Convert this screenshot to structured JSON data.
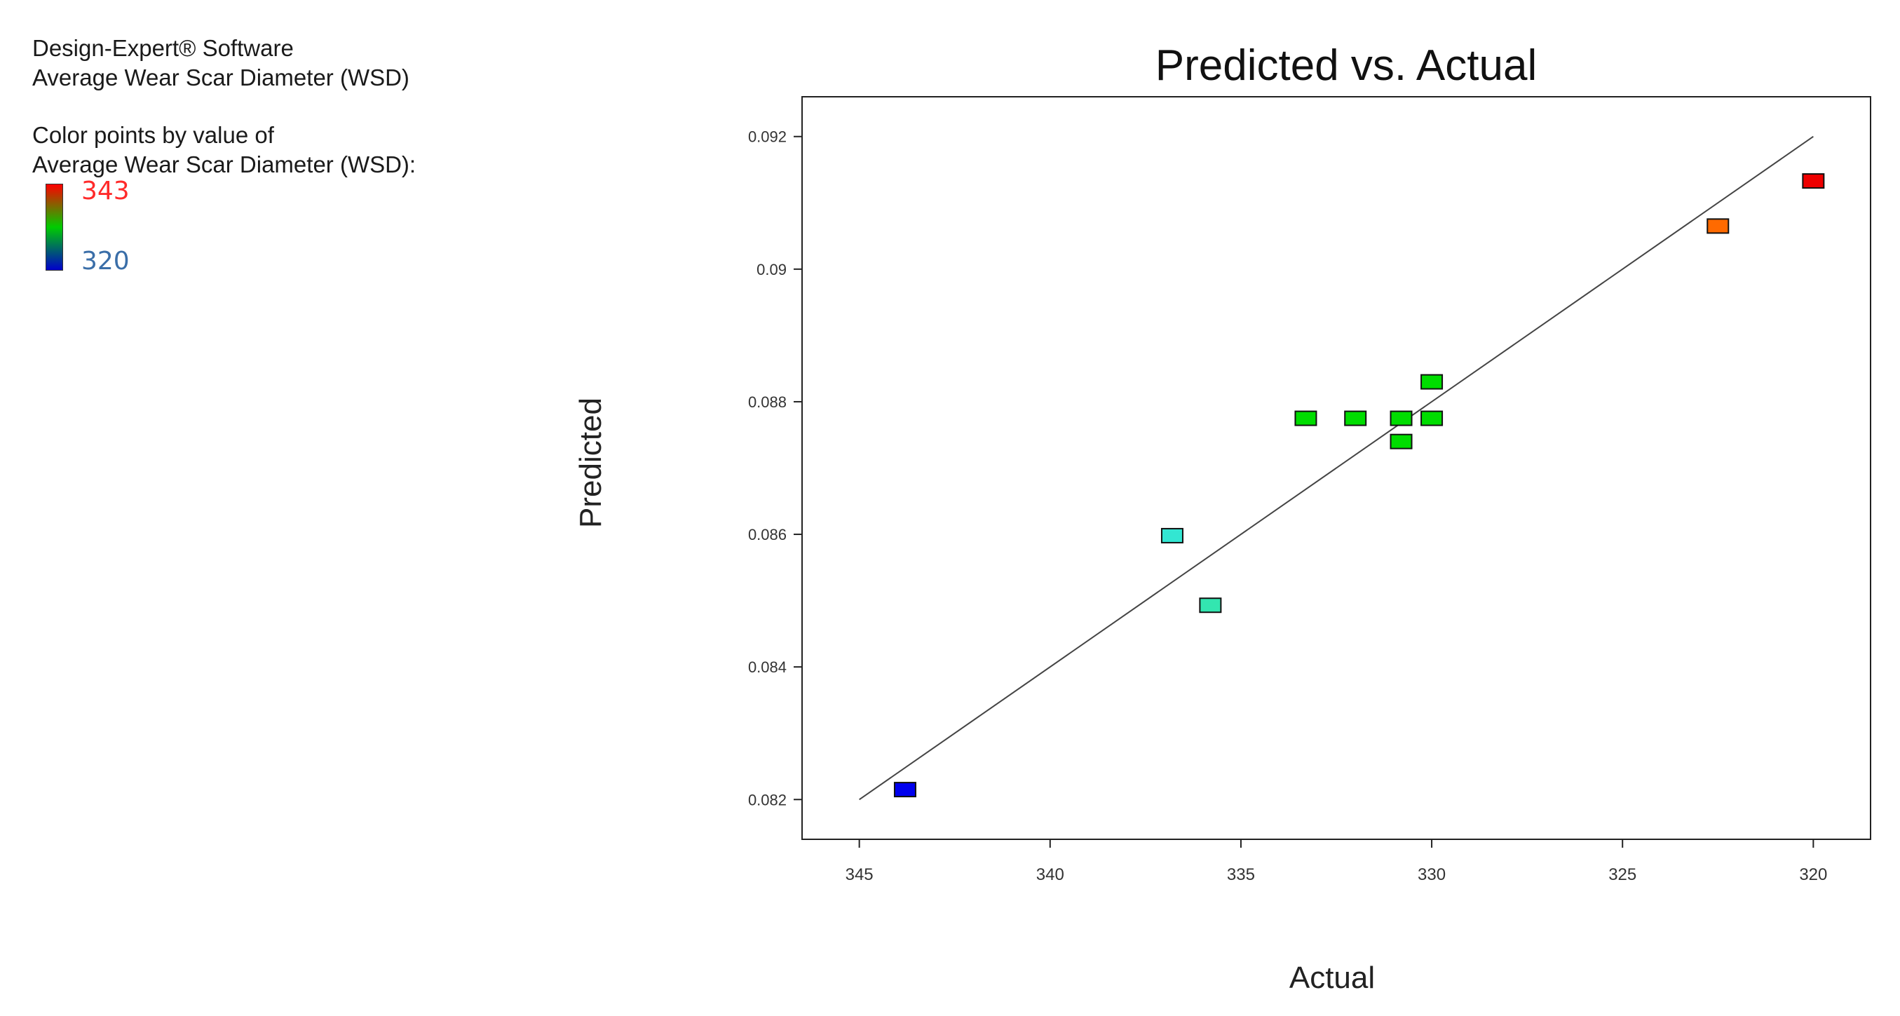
{
  "info": {
    "software": "Design-Expert® Software",
    "response": "Average Wear Scar Diameter (WSD)",
    "color_caption_1": "Color points by value of",
    "color_caption_2": "Average Wear Scar Diameter (WSD):"
  },
  "legend": {
    "max": "343",
    "min": "320",
    "max_color": "#ff0000",
    "mid_color": "#00cc00",
    "min_color": "#0000cc"
  },
  "chart_data": {
    "type": "scatter",
    "title": "Predicted vs. Actual",
    "xlabel": "Actual",
    "ylabel": "Predicted",
    "xlim": [
      346.5,
      318.5
    ],
    "ylim": [
      0.0814,
      0.0926
    ],
    "x_reversed": true,
    "xticks": [
      "345",
      "340",
      "335",
      "330",
      "325",
      "320"
    ],
    "xtick_values": [
      345,
      340,
      335,
      330,
      325,
      320
    ],
    "yticks": [
      "0.082",
      "0.084",
      "0.086",
      "0.088",
      "0.09",
      "0.092"
    ],
    "ytick_values": [
      0.082,
      0.084,
      0.086,
      0.088,
      0.09,
      0.092
    ],
    "fit_line": {
      "x": [
        345,
        320
      ],
      "y": [
        0.082,
        0.092
      ]
    },
    "points": [
      {
        "x": 343.8,
        "y": 0.08215,
        "color": "#0000ee"
      },
      {
        "x": 336.8,
        "y": 0.08598,
        "color": "#33e6d2"
      },
      {
        "x": 335.8,
        "y": 0.08493,
        "color": "#33e6b0"
      },
      {
        "x": 333.3,
        "y": 0.08775,
        "color": "#00dd00"
      },
      {
        "x": 332.0,
        "y": 0.08775,
        "color": "#00dd00"
      },
      {
        "x": 330.8,
        "y": 0.08775,
        "color": "#00dd00"
      },
      {
        "x": 330.8,
        "y": 0.0874,
        "color": "#00dd00"
      },
      {
        "x": 330.0,
        "y": 0.08775,
        "color": "#00dd00"
      },
      {
        "x": 330.0,
        "y": 0.0883,
        "color": "#00dd00"
      },
      {
        "x": 322.5,
        "y": 0.09065,
        "color": "#ff6a00"
      },
      {
        "x": 320.0,
        "y": 0.09133,
        "color": "#ee0000"
      }
    ]
  }
}
